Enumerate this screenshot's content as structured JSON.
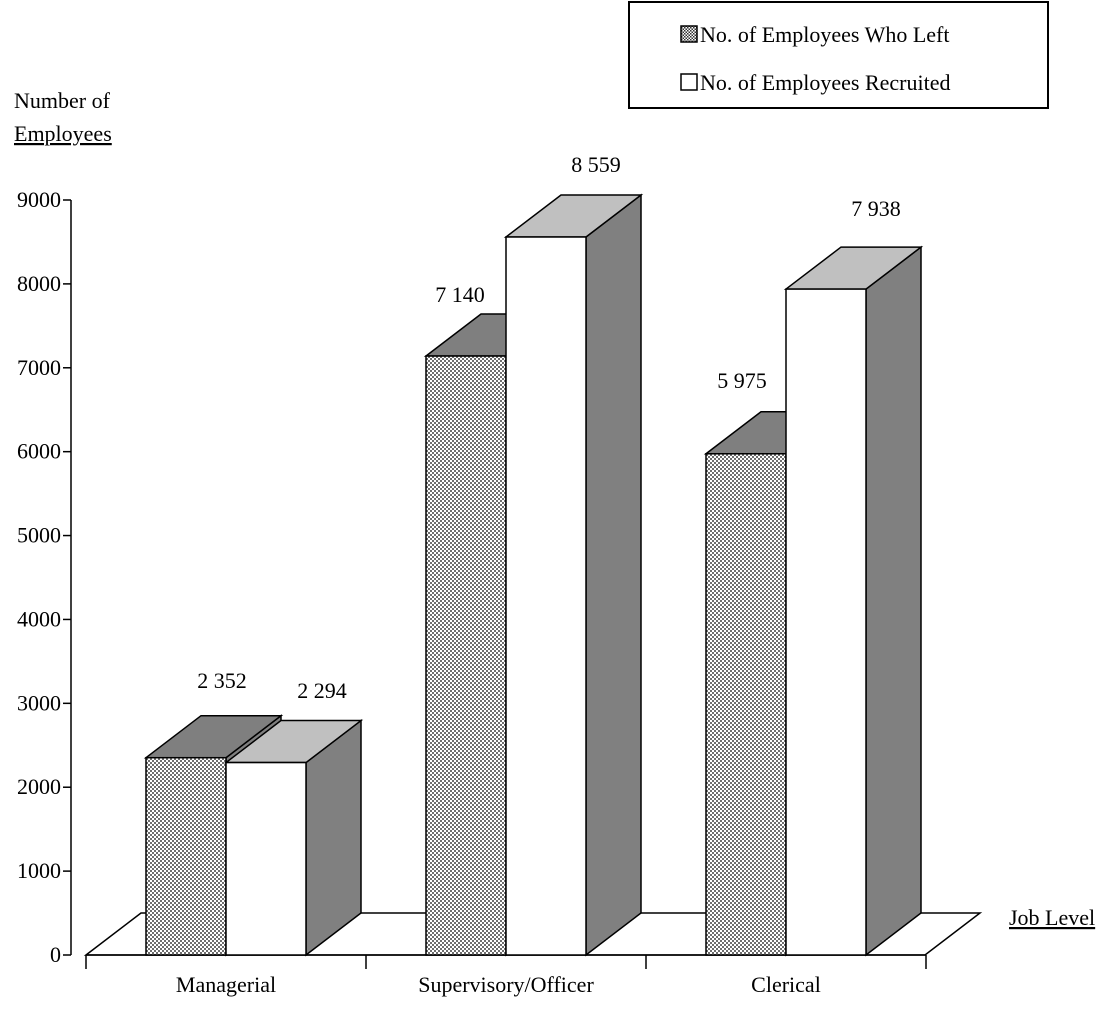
{
  "colors": {
    "left_face": "#ffffff",
    "left_pattern_dot": "#6e6e6e",
    "left_top": "#7f7f7f",
    "left_side": "#7f7f7f",
    "recruited_face": "#ffffff",
    "recruited_top": "#c0c0c0",
    "recruited_side": "#808080",
    "stroke": "#000000"
  },
  "chart_data": {
    "type": "bar",
    "style": "3d-clustered",
    "categories": [
      "Managerial",
      "Supervisory/Officer",
      "Clerical"
    ],
    "series": [
      {
        "name": "No. of Employees Who Left",
        "values": [
          2352,
          7140,
          5975
        ],
        "value_labels": [
          "2 352",
          "7 140",
          "5 975"
        ]
      },
      {
        "name": "No. of Employees Recruited",
        "values": [
          2294,
          8559,
          7938
        ],
        "value_labels": [
          "2 294",
          "8 559",
          "7 938"
        ]
      }
    ],
    "ylabel_line1": "Number of",
    "ylabel_line2": "Employees",
    "xlabel": "Job Level",
    "ylim": [
      0,
      9000
    ],
    "yticks": [
      "0",
      "1000",
      "2000",
      "3000",
      "4000",
      "5000",
      "6000",
      "7000",
      "8000",
      "9000"
    ],
    "legend_position": "top-right",
    "grid": false
  }
}
